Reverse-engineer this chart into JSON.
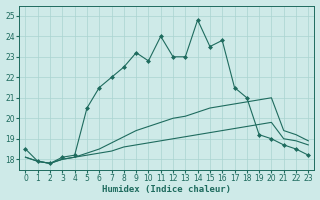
{
  "xlabel": "Humidex (Indice chaleur)",
  "xlim": [
    -0.5,
    23.5
  ],
  "ylim": [
    17.5,
    25.5
  ],
  "yticks": [
    18,
    19,
    20,
    21,
    22,
    23,
    24,
    25
  ],
  "xticks": [
    0,
    1,
    2,
    3,
    4,
    5,
    6,
    7,
    8,
    9,
    10,
    11,
    12,
    13,
    14,
    15,
    16,
    17,
    18,
    19,
    20,
    21,
    22,
    23
  ],
  "bg_color": "#ceeae8",
  "grid_color": "#aad4d0",
  "line_color": "#1e6b5e",
  "line1_x": [
    0,
    1,
    2,
    3,
    4,
    5,
    6,
    7,
    8,
    9,
    10,
    11,
    12,
    13,
    14,
    15,
    16,
    17,
    18,
    19,
    20,
    21,
    22,
    23
  ],
  "line1_y": [
    18.5,
    17.9,
    17.8,
    18.1,
    18.2,
    20.5,
    21.5,
    22.0,
    22.5,
    23.2,
    22.8,
    24.0,
    23.0,
    23.0,
    24.8,
    23.5,
    23.8,
    21.5,
    21.0,
    19.2,
    19.0,
    18.7,
    18.5,
    18.2
  ],
  "line2_x": [
    0,
    1,
    2,
    3,
    4,
    5,
    6,
    7,
    8,
    9,
    10,
    11,
    12,
    13,
    14,
    15,
    16,
    17,
    18,
    19,
    20,
    21,
    22,
    23
  ],
  "line2_y": [
    18.1,
    17.9,
    17.8,
    18.0,
    18.1,
    18.3,
    18.5,
    18.8,
    19.1,
    19.4,
    19.6,
    19.8,
    20.0,
    20.1,
    20.3,
    20.5,
    20.6,
    20.7,
    20.8,
    20.9,
    21.0,
    19.4,
    19.2,
    18.9
  ],
  "line3_x": [
    0,
    1,
    2,
    3,
    4,
    5,
    6,
    7,
    8,
    9,
    10,
    11,
    12,
    13,
    14,
    15,
    16,
    17,
    18,
    19,
    20,
    21,
    22,
    23
  ],
  "line3_y": [
    18.1,
    17.9,
    17.8,
    18.0,
    18.1,
    18.2,
    18.3,
    18.4,
    18.6,
    18.7,
    18.8,
    18.9,
    19.0,
    19.1,
    19.2,
    19.3,
    19.4,
    19.5,
    19.6,
    19.7,
    19.8,
    19.0,
    18.9,
    18.7
  ]
}
